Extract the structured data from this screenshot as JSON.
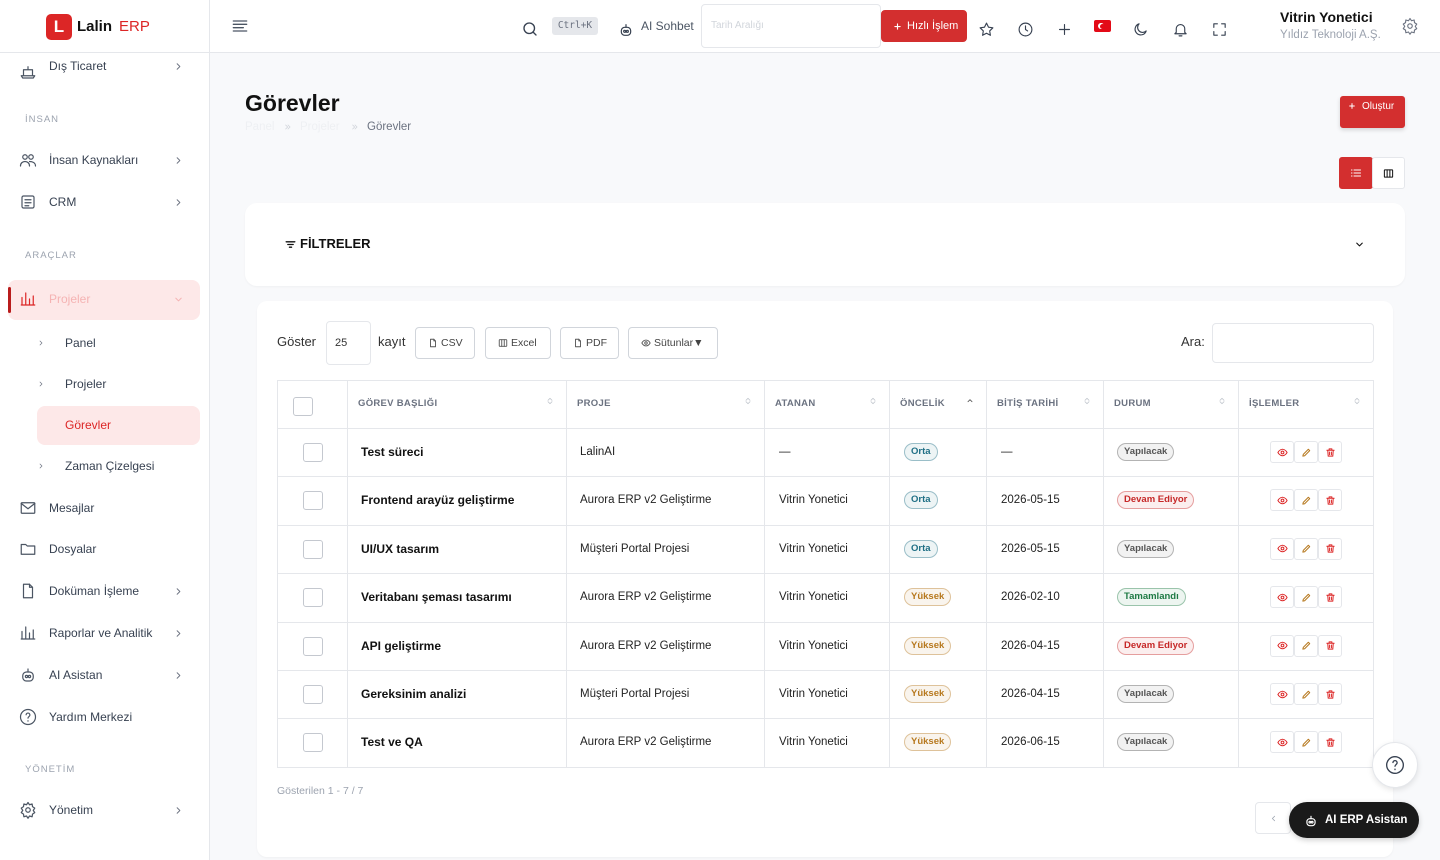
{
  "sidebar": {
    "logo": "L",
    "brand": "Lalin",
    "brand_suffix": "ERP",
    "items": [
      "Dış Ticaret",
      "İnsan Kaynakları",
      "CRM",
      "Projeler",
      "Mesajlar",
      "Dosyalar",
      "Doküman İşleme",
      "Raporlar ve Analitik",
      "AI Asistan",
      "Yardım Merkezi",
      "Yönetim"
    ],
    "sections": [
      "İNSAN",
      "ARAÇLAR",
      "YÖNETİM"
    ],
    "subitems": [
      "Panel",
      "Projeler",
      "Görevler",
      "Zaman Çizelgesi"
    ]
  },
  "topbar": {
    "shortcut": "Ctrl+K",
    "ai_chat": "AI Sohbet",
    "date_placeholder": "Tarih Aralığı",
    "quick_action": "Hızlı İşlem",
    "user_name": "Vitrin Yonetici",
    "company": "Yıldız Teknoloji A.Ş."
  },
  "page": {
    "title": "Görevler",
    "breadcrumb": [
      "Panel",
      "Projeler",
      "Görevler"
    ],
    "create": "Oluştur",
    "filters": "FİLTRELER"
  },
  "controls": {
    "show": "Göster",
    "length": "25",
    "records": "kayıt",
    "buttons": [
      "CSV",
      "Excel",
      "PDF",
      "Sütunlar▼"
    ],
    "search": "Ara:"
  },
  "table": {
    "headers": [
      "GÖREV BAŞLIĞI",
      "PROJE",
      "ATANAN",
      "ÖNCELİK",
      "BİTİŞ TARİHİ",
      "DURUM",
      "İŞLEMLER"
    ],
    "rows": [
      {
        "cells": [
          "Test süreci",
          "LalinAI",
          "—",
          "Orta",
          "—",
          "Yapılacak"
        ],
        "priority_color": "#1f6f85",
        "status_color": "#555555"
      },
      {
        "cells": [
          "Frontend arayüz geliştirme",
          "Aurora ERP v2 Geliştirme",
          "Vitrin Yonetici",
          "Orta",
          "2026-05-15",
          "Devam Ediyor"
        ],
        "priority_color": "#1f6f85",
        "status_color": "#c62828"
      },
      {
        "cells": [
          "UI/UX tasarım",
          "Müşteri Portal Projesi",
          "Vitrin Yonetici",
          "Orta",
          "2026-05-15",
          "Yapılacak"
        ],
        "priority_color": "#1f6f85",
        "status_color": "#555555"
      },
      {
        "cells": [
          "Veritabanı şeması tasarımı",
          "Aurora ERP v2 Geliştirme",
          "Vitrin Yonetici",
          "Yüksek",
          "2026-02-10",
          "Tamamlandı"
        ],
        "priority_color": "#b7791f",
        "status_color": "#1e7a44"
      },
      {
        "cells": [
          "API geliştirme",
          "Aurora ERP v2 Geliştirme",
          "Vitrin Yonetici",
          "Yüksek",
          "2026-04-15",
          "Devam Ediyor"
        ],
        "priority_color": "#b7791f",
        "status_color": "#c62828"
      },
      {
        "cells": [
          "Gereksinim analizi",
          "Müşteri Portal Projesi",
          "Vitrin Yonetici",
          "Yüksek",
          "2026-04-15",
          "Yapılacak"
        ],
        "priority_color": "#b7791f",
        "status_color": "#555555"
      },
      {
        "cells": [
          "Test ve QA",
          "Aurora ERP v2 Geliştirme",
          "Vitrin Yonetici",
          "Yüksek",
          "2026-06-15",
          "Yapılacak"
        ],
        "priority_color": "#b7791f",
        "status_color": "#555555"
      }
    ]
  },
  "footer": {
    "info": "Gösterilen 1 - 7 / 7",
    "assistant": "AI ERP Asistan"
  }
}
